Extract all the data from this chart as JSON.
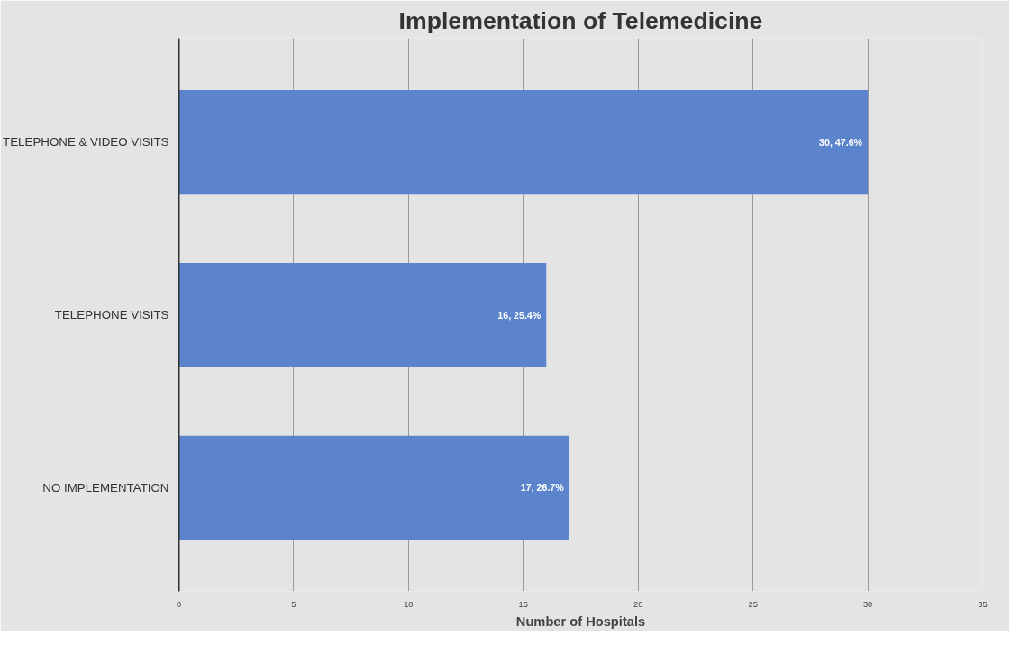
{
  "chart_data": {
    "type": "bar",
    "orientation": "horizontal",
    "title": "Implementation of Telemedicine",
    "xlabel": "Number of Hospitals",
    "categories": [
      "TELEPHONE & VIDEO VISITS",
      "TELEPHONE VISITS",
      "NO IMPLEMENTATION"
    ],
    "values": [
      30,
      16,
      17
    ],
    "color": "#5b84cc",
    "value_labels": [
      "30, 47.6%",
      "16, 25.4%",
      "17, 26.7%"
    ],
    "xlim": [
      0,
      35
    ],
    "xticks": [
      0,
      5,
      10,
      15,
      20,
      25,
      30,
      35
    ],
    "grid": "x"
  }
}
